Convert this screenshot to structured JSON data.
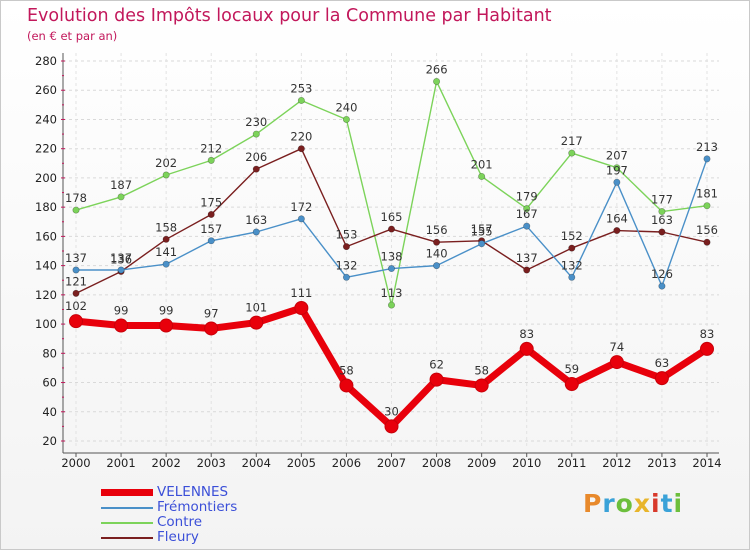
{
  "header": {
    "title": "Evolution des Impôts locaux pour la Commune par Habitant",
    "subtitle": "(en € et par an)"
  },
  "logo": {
    "text": "Proxiti",
    "colors": [
      "#e8892b",
      "#3aa2d8",
      "#6cbf3c",
      "#e8b52b",
      "#d8392b",
      "#3aa2d8",
      "#6cbf3c"
    ]
  },
  "chart_data": {
    "type": "line",
    "title": "Evolution des Impôts locaux pour la Commune par Habitant",
    "subtitle": "(en € et par an)",
    "x": [
      "2000",
      "2001",
      "2002",
      "2003",
      "2004",
      "2005",
      "2006",
      "2007",
      "2008",
      "2009",
      "2010",
      "2011",
      "2012",
      "2013",
      "2014"
    ],
    "ylim": [
      20,
      280
    ],
    "yticks": [
      20,
      40,
      60,
      80,
      100,
      120,
      140,
      160,
      180,
      200,
      220,
      240,
      260,
      280
    ],
    "grid": true,
    "legend": "bottom-left",
    "series": [
      {
        "name": "VELENNES",
        "color": "#e8000b",
        "values": [
          102,
          99,
          99,
          97,
          101,
          111,
          58,
          30,
          62,
          58,
          83,
          59,
          74,
          63,
          83
        ]
      },
      {
        "name": "Frémontiers",
        "color": "#4a90c8",
        "values": [
          137,
          137,
          141,
          157,
          163,
          172,
          132,
          138,
          140,
          155,
          167,
          132,
          197,
          126,
          213
        ]
      },
      {
        "name": "Contre",
        "color": "#7cd35a",
        "values": [
          178,
          187,
          202,
          212,
          230,
          253,
          240,
          113,
          266,
          201,
          179,
          217,
          207,
          177,
          181
        ]
      },
      {
        "name": "Fleury",
        "color": "#7a1f1f",
        "values": [
          121,
          136,
          158,
          175,
          206,
          220,
          153,
          165,
          156,
          157,
          137,
          152,
          164,
          163,
          156
        ]
      }
    ]
  }
}
